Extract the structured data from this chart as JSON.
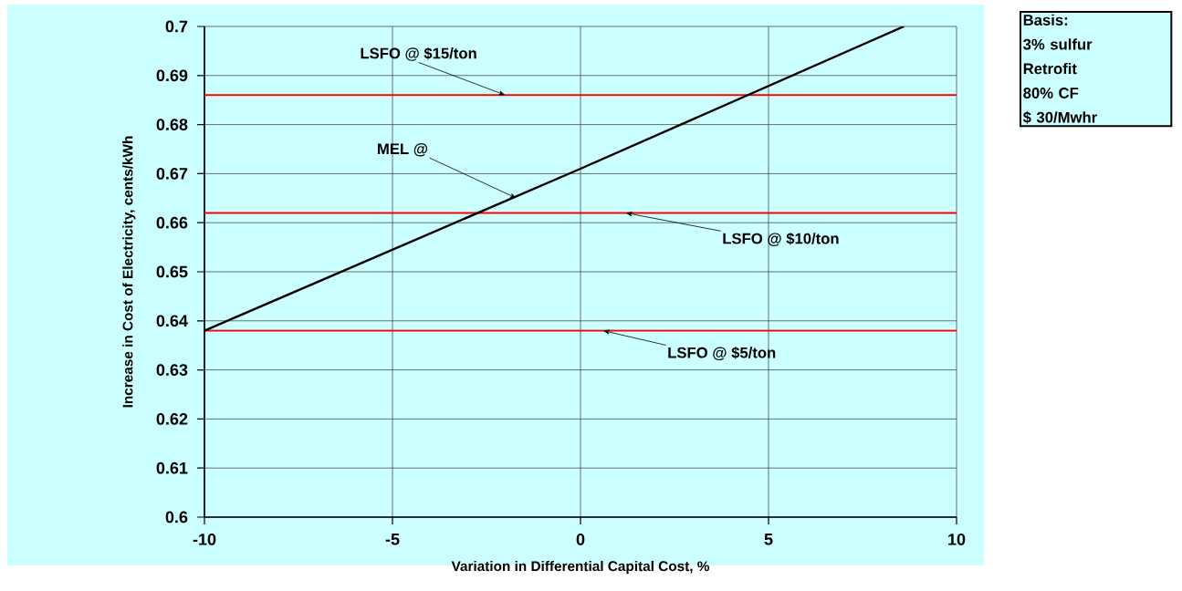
{
  "chart_data": {
    "type": "line",
    "xlabel": "Variation in Differential Capital Cost, %",
    "ylabel": "Increase in Cost of Electricity, cents/kWh",
    "x": [
      -10,
      0,
      8.6
    ],
    "series": [
      {
        "color": "#000000",
        "values": [
          0.638,
          0.671,
          0.7
        ]
      }
    ],
    "xlim": [
      -10,
      10
    ],
    "ylim": [
      0.6,
      0.7
    ],
    "xticks": [
      -10,
      -5,
      0,
      5,
      10
    ],
    "yticks": [
      0.6,
      0.61,
      0.62,
      0.63,
      0.64,
      0.65,
      0.66,
      0.67,
      0.68,
      0.69,
      0.7
    ],
    "grid": true,
    "ref_lines": [
      {
        "axis": "y",
        "value": 0.686,
        "color": "#ff0000"
      },
      {
        "axis": "y",
        "value": 0.662,
        "color": "#ff0000"
      },
      {
        "axis": "y",
        "value": 0.638,
        "color": "#ff0000"
      }
    ],
    "annotations": [
      {
        "text": "LSFO @ $15/ton",
        "x": -2,
        "y": 0.686
      },
      {
        "text": "MEL @",
        "x": -1.7,
        "y": 0.665
      },
      {
        "text": "LSFO @ $10/ton",
        "x": 1.2,
        "y": 0.662
      },
      {
        "text": "LSFO @ $5/ton",
        "x": 0.6,
        "y": 0.638
      },
      "Basis:",
      "3% sulfur",
      "Retrofit",
      "80% CF",
      "$ 30/Mwhr"
    ]
  }
}
